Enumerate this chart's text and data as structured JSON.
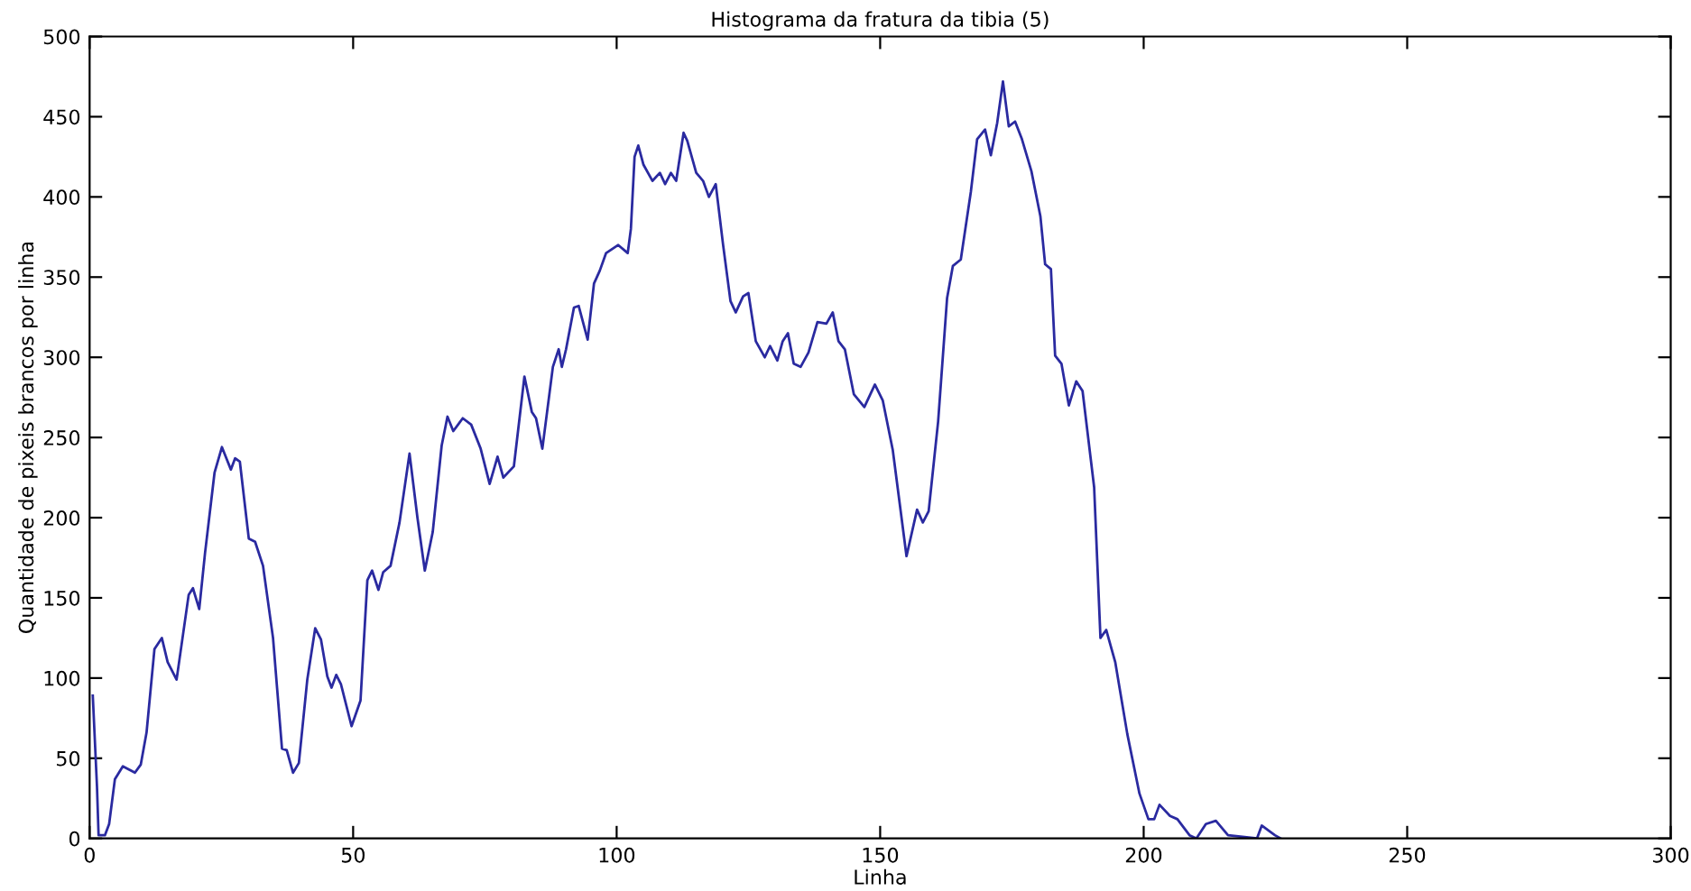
{
  "chart_data": {
    "type": "line",
    "title": "Histograma da fratura da tibia (5)",
    "xlabel": "Linha",
    "ylabel": "Quantidade de pixeis brancos por linha",
    "xlim": [
      0,
      300
    ],
    "ylim": [
      0,
      500
    ],
    "xticks": [
      0,
      50,
      100,
      150,
      200,
      250,
      300
    ],
    "yticks": [
      0,
      50,
      100,
      150,
      200,
      250,
      300,
      350,
      400,
      450,
      500
    ],
    "grid": false,
    "marker": "none",
    "line_style": "solid",
    "series": [
      {
        "color": "#2a2aa0",
        "x": [
          0.6,
          1.4,
          1.7,
          2.9,
          3.7,
          4.8,
          6.3,
          8.6,
          9.7,
          10.8,
          12.3,
          13.7,
          14.8,
          16.5,
          18.8,
          19.6,
          20.8,
          21.9,
          23.7,
          25.1,
          26.8,
          27.6,
          28.5,
          30.2,
          31.4,
          32.9,
          34.8,
          36.5,
          37.4,
          38.6,
          39.7,
          41.3,
          42.8,
          43.9,
          45.1,
          45.9,
          46.8,
          47.7,
          49.7,
          51.4,
          52.7,
          53.6,
          54.8,
          55.7,
          57.1,
          58.8,
          60.7,
          62.2,
          63.6,
          65.1,
          66.8,
          67.9,
          69.0,
          70.8,
          72.4,
          74.2,
          75.9,
          77.4,
          78.5,
          80.5,
          82.5,
          83.9,
          84.7,
          85.9,
          87.9,
          89.0,
          89.6,
          90.4,
          91.9,
          92.8,
          94.5,
          95.7,
          96.8,
          98.0,
          100.3,
          102.1,
          102.7,
          103.4,
          104.1,
          105.1,
          106.8,
          108.2,
          109.2,
          110.3,
          111.3,
          112.7,
          113.4,
          115.1,
          116.4,
          117.5,
          118.8,
          120.2,
          121.6,
          122.6,
          124.0,
          125.0,
          126.4,
          128.1,
          129.1,
          130.5,
          131.5,
          132.5,
          133.6,
          134.9,
          136.4,
          138.1,
          139.8,
          141.0,
          142.1,
          143.3,
          145.0,
          147.0,
          149.0,
          150.5,
          152.4,
          155.0,
          157.0,
          158.1,
          159.2,
          161.0,
          162.7,
          163.8,
          165.3,
          167.2,
          168.4,
          169.9,
          171.0,
          172.2,
          173.3,
          174.4,
          175.6,
          176.9,
          178.7,
          180.4,
          181.3,
          182.4,
          183.2,
          184.4,
          185.8,
          187.2,
          188.4,
          190.6,
          191.8,
          192.9,
          194.6,
          196.9,
          199.2,
          200.9,
          202.0,
          203.0,
          205.0,
          206.4,
          208.7,
          210.0,
          211.8,
          213.7,
          216.0,
          221.5,
          222.4,
          224.9,
          226.0
        ],
        "values": [
          89,
          32,
          2,
          2,
          9,
          37,
          45,
          41,
          46,
          66,
          118,
          125,
          110,
          99,
          152,
          156,
          143,
          178,
          228,
          244,
          230,
          237,
          235,
          187,
          185,
          170,
          125,
          56,
          55,
          41,
          47,
          99,
          131,
          124,
          101,
          94,
          102,
          96,
          70,
          86,
          161,
          167,
          155,
          166,
          170,
          197,
          240,
          200,
          167,
          191,
          245,
          263,
          254,
          262,
          258,
          243,
          221,
          238,
          225,
          232,
          288,
          266,
          262,
          243,
          294,
          305,
          294,
          305,
          331,
          332,
          311,
          346,
          354,
          365,
          370,
          365,
          380,
          425,
          432,
          420,
          410,
          415,
          408,
          415,
          410,
          440,
          435,
          415,
          410,
          400,
          408,
          370,
          335,
          328,
          338,
          340,
          310,
          300,
          307,
          298,
          310,
          315,
          296,
          294,
          303,
          322,
          321,
          328,
          310,
          305,
          277,
          269,
          283,
          273,
          242,
          176,
          205,
          197,
          204,
          260,
          337,
          357,
          361,
          403,
          436,
          442,
          426,
          446,
          472,
          444,
          447,
          436,
          416,
          388,
          358,
          355,
          301,
          296,
          270,
          285,
          279,
          219,
          125,
          130,
          110,
          65,
          28,
          12,
          12,
          21,
          14,
          12,
          2,
          0,
          9,
          11,
          2,
          0,
          8,
          2,
          0
        ]
      }
    ]
  }
}
